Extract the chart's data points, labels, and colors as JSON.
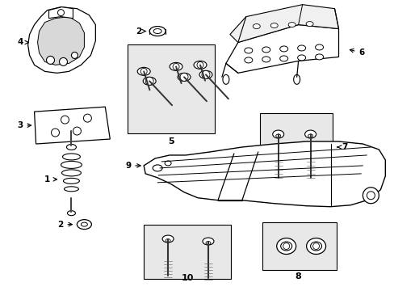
{
  "bg_color": "#ffffff",
  "line_color": "#000000",
  "box_bg": "#e8e8e8",
  "fig_width": 4.89,
  "fig_height": 3.6,
  "dpi": 100
}
